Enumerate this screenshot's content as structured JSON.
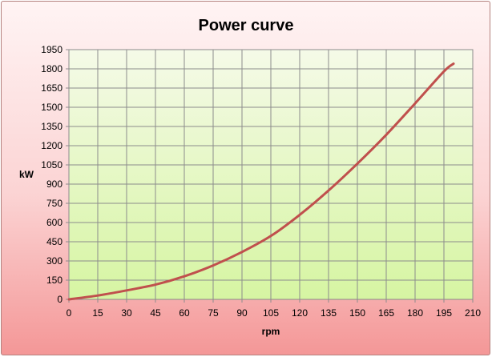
{
  "chart_data": {
    "type": "line",
    "title": "Power curve",
    "xlabel": "rpm",
    "ylabel": "kW",
    "xlim": [
      0,
      210
    ],
    "ylim": [
      0,
      1950
    ],
    "x_ticks": [
      0,
      15,
      30,
      45,
      60,
      75,
      90,
      105,
      120,
      135,
      150,
      165,
      180,
      195,
      210
    ],
    "y_ticks": [
      0,
      150,
      300,
      450,
      600,
      750,
      900,
      1050,
      1200,
      1350,
      1500,
      1650,
      1800,
      1950
    ],
    "grid": true,
    "legend": "none",
    "series": [
      {
        "color": "#c0504d",
        "x": [
          0,
          15,
          30,
          45,
          60,
          75,
          90,
          105,
          120,
          135,
          150,
          165,
          180,
          195,
          200
        ],
        "y": [
          0,
          30,
          70,
          115,
          180,
          265,
          370,
          495,
          660,
          850,
          1060,
          1285,
          1530,
          1780,
          1840
        ]
      }
    ]
  },
  "colors": {
    "plot_background_top": "#f5fae8",
    "plot_background_bottom": "#d6f5a2",
    "gridline": "#8c8c8c",
    "line": "#c0504d"
  }
}
